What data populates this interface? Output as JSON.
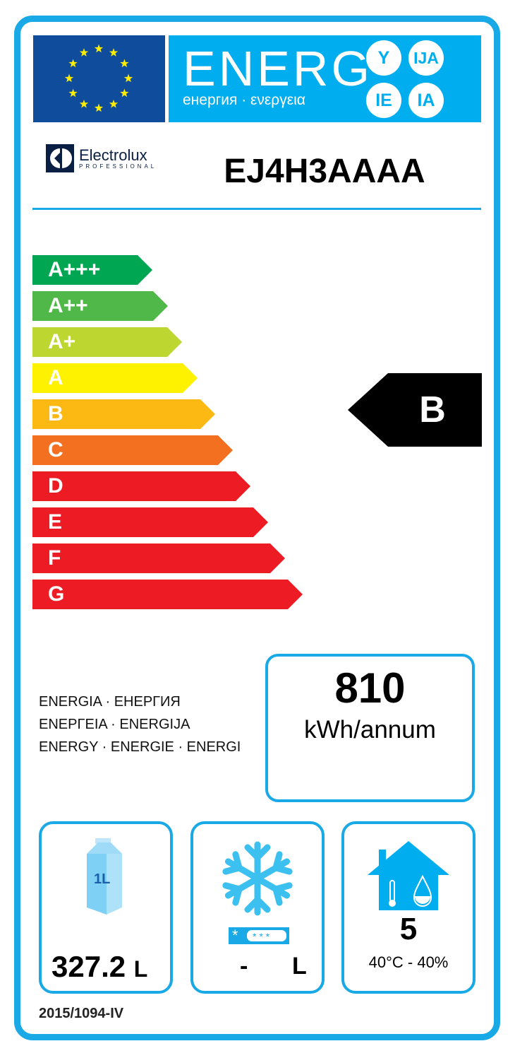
{
  "header": {
    "energ": "ENERG",
    "subtitle": "енергия · ενεργεια",
    "suffixes": [
      "Y",
      "IJA",
      "IE",
      "IA"
    ]
  },
  "supplier": {
    "brand": "Electrolux",
    "brand_sub": "PROFESSIONAL",
    "model": "EJ4H3AAAA"
  },
  "scale": {
    "classes": [
      {
        "label": "A+++",
        "color": "#00a651"
      },
      {
        "label": "A++",
        "color": "#50b848"
      },
      {
        "label": "A+",
        "color": "#bed630"
      },
      {
        "label": "A",
        "color": "#fff200"
      },
      {
        "label": "B",
        "color": "#fdb913"
      },
      {
        "label": "C",
        "color": "#f37021"
      },
      {
        "label": "D",
        "color": "#ed1c24"
      },
      {
        "label": "E",
        "color": "#ed1c24"
      },
      {
        "label": "F",
        "color": "#ed1c24"
      },
      {
        "label": "G",
        "color": "#ed1c24"
      }
    ],
    "rating": "B"
  },
  "energy": {
    "words": [
      "ENERGIA · ЕНЕРГИЯ",
      "ΕΝΕΡΓΕΙΑ · ENERGIJA",
      "ENERGY · ENERGIE · ENERGI"
    ],
    "value": "810",
    "unit": "kWh/annum"
  },
  "volume": {
    "value": "327.2",
    "unit": "L",
    "icon_label": "1L"
  },
  "frozen": {
    "value": "-",
    "unit": "L"
  },
  "climate": {
    "class": "5",
    "conditions": "40°C - 40%"
  },
  "regulation": "2015/1094-IV",
  "colors": {
    "frame": "#19a9e6",
    "banner": "#00aeef",
    "flag": "#0f4c9c"
  }
}
